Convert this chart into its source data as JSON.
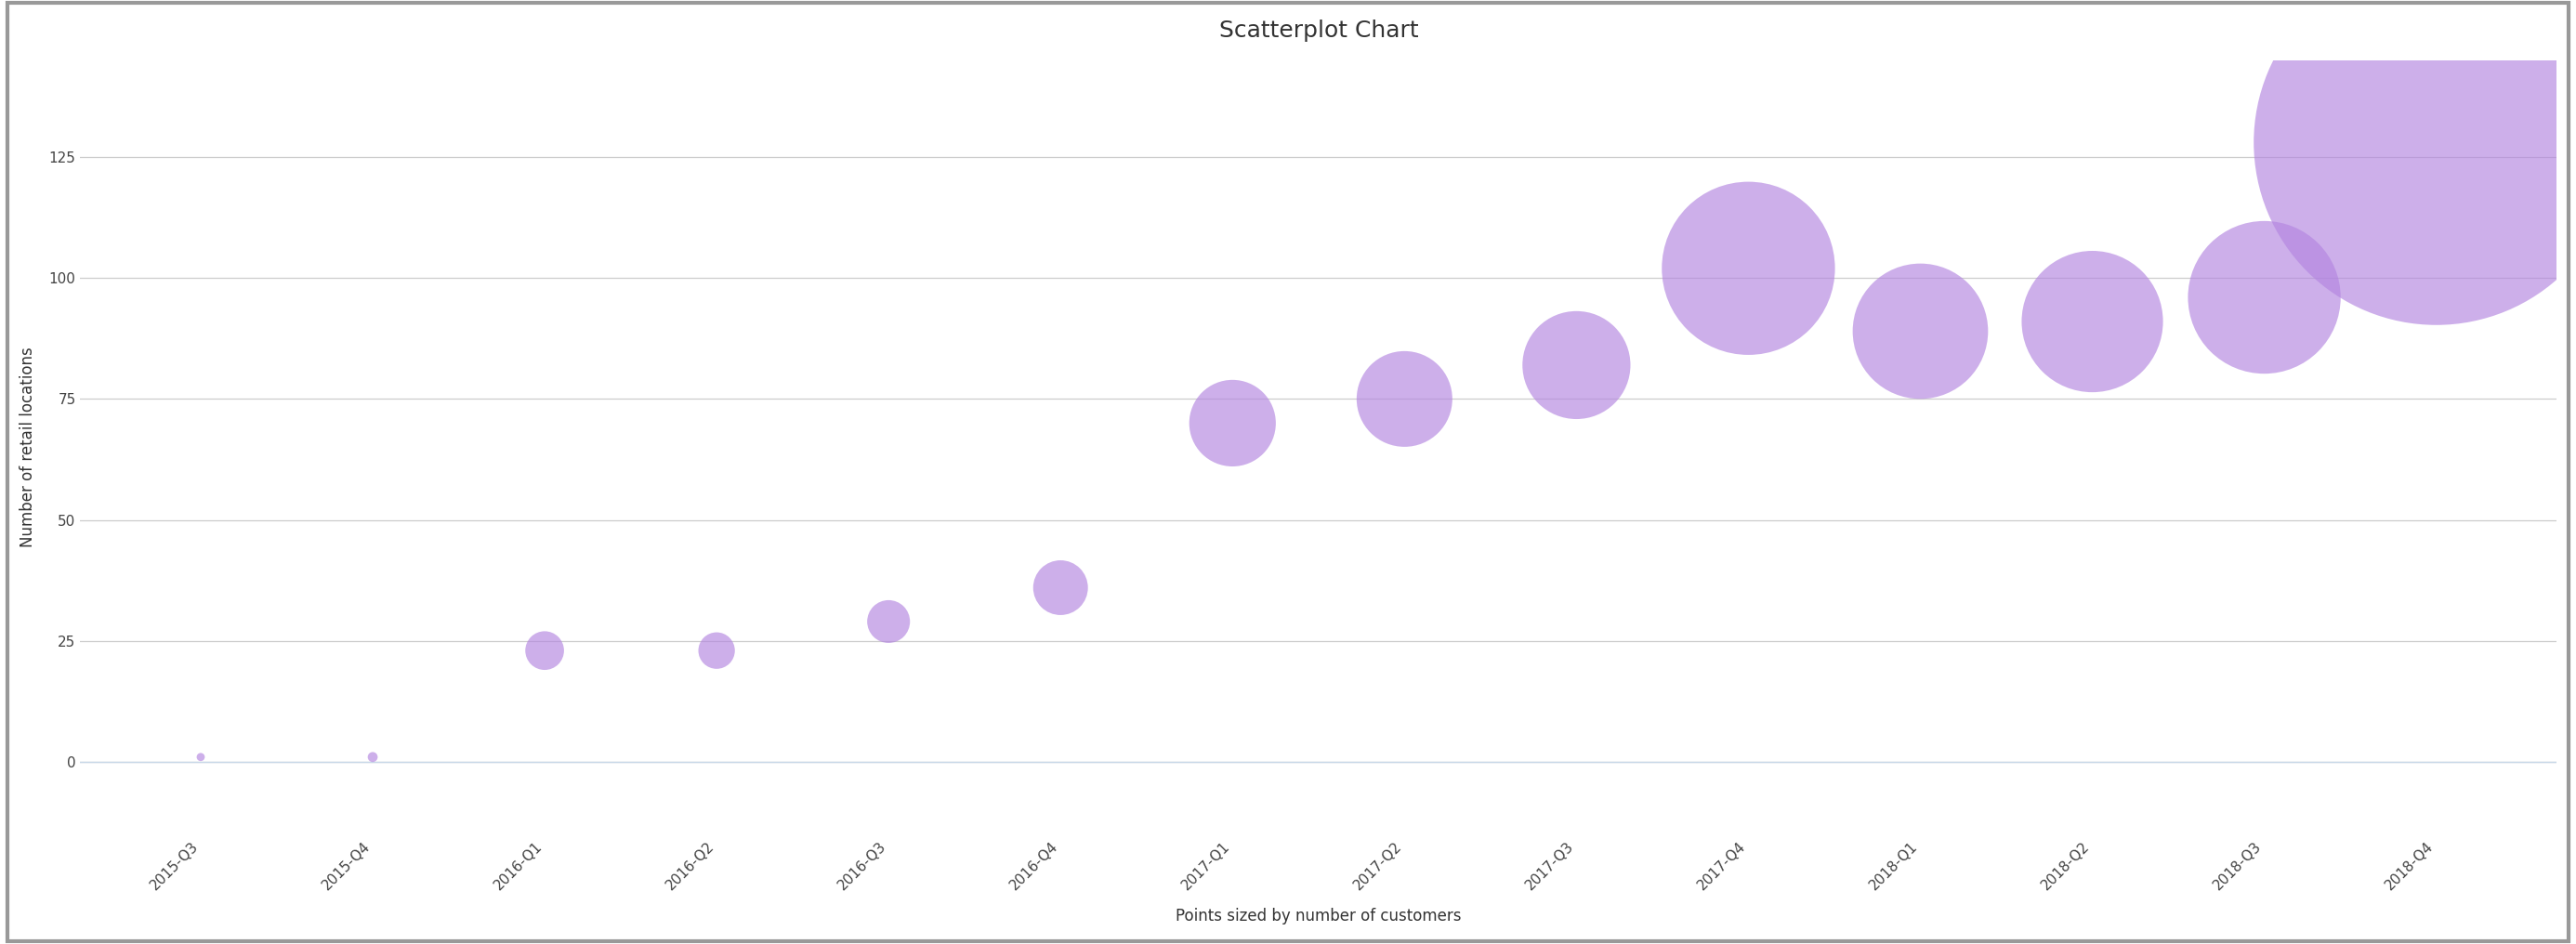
{
  "title": "Scatterplot Chart",
  "xlabel": "Points sized by number of customers",
  "ylabel": "Number of retail locations",
  "quarters": [
    "2015-Q3",
    "2015-Q4",
    "2016-Q1",
    "2016-Q2",
    "2016-Q3",
    "2016-Q4",
    "2017-Q1",
    "2017-Q2",
    "2017-Q3",
    "2017-Q4",
    "2018-Q1",
    "2018-Q2",
    "2018-Q3",
    "2018-Q4"
  ],
  "y_values": [
    1,
    1,
    23,
    23,
    29,
    36,
    70,
    75,
    82,
    102,
    89,
    91,
    96,
    128
  ],
  "bubble_sizes": [
    40,
    60,
    900,
    800,
    1100,
    1800,
    4500,
    5500,
    7000,
    18000,
    11000,
    12000,
    14000,
    80000
  ],
  "bubble_color": "#b385e0",
  "bubble_alpha": 0.65,
  "background_color": "#ffffff",
  "grid_color": "#cccccc",
  "border_color": "#999999",
  "ylim": [
    -15,
    145
  ],
  "yticks": [
    0,
    25,
    50,
    75,
    100,
    125
  ],
  "title_fontsize": 18,
  "axis_label_fontsize": 12,
  "tick_fontsize": 11
}
